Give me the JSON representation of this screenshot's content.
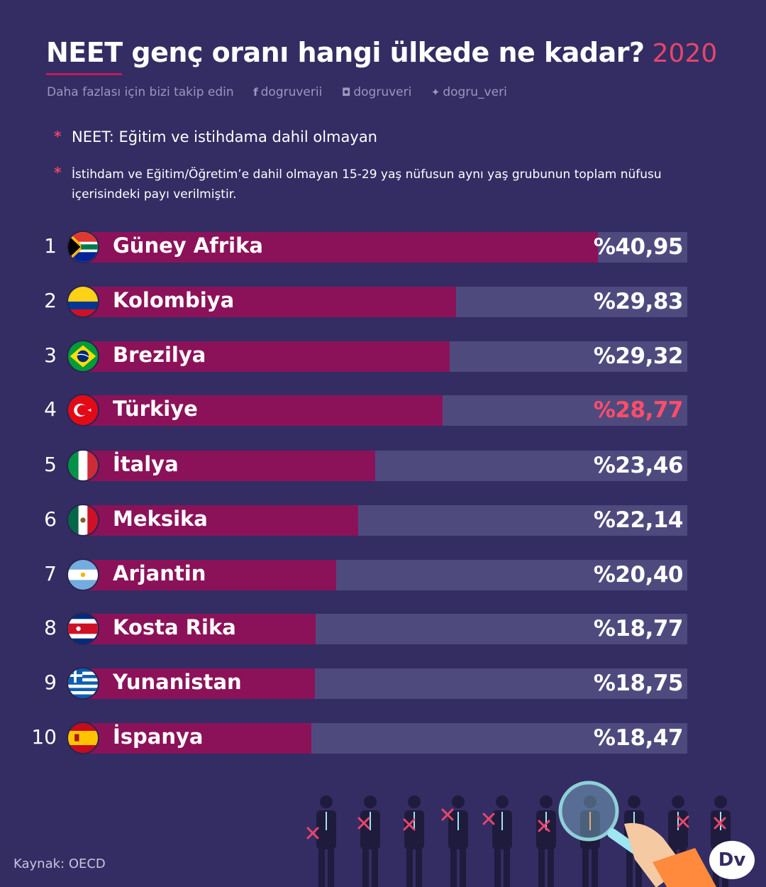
{
  "header": {
    "title": "NEET genç oranı hangi ülkede ne kadar?",
    "year": "2020",
    "follow_text": "Daha fazlası için bizi takip edin",
    "social": [
      {
        "icon": "facebook-icon",
        "glyph": "f",
        "handle": "dogruverii"
      },
      {
        "icon": "instagram-icon",
        "glyph": "◘",
        "handle": "dogruveri"
      },
      {
        "icon": "twitter-icon",
        "glyph": "✦",
        "handle": "dogru_veri"
      }
    ]
  },
  "notes": {
    "star": "*",
    "note1": "NEET: Eğitim ve istihdama dahil olmayan",
    "note2": "İstihdam ve Eğitim/Öğretim’e dahil olmayan 15-29 yaş nüfusun aynı yaş grubunun toplam nüfusu içerisindeki payı verilmiştir."
  },
  "colors": {
    "background": "#332d63",
    "bar_fill": "#8b1259",
    "bar_track": "#4f4a7e",
    "highlight": "#ff4d6a"
  },
  "chart_data": {
    "type": "bar",
    "orientation": "horizontal",
    "categories": [
      "Güney Afrika",
      "Kolombiya",
      "Brezilya",
      "Türkiye",
      "İtalya",
      "Meksika",
      "Arjantin",
      "Kosta Rika",
      "Yunanistan",
      "İspanya"
    ],
    "ranks": [
      "1",
      "2",
      "3",
      "4",
      "5",
      "6",
      "7",
      "8",
      "9",
      "10"
    ],
    "values": [
      40.95,
      29.83,
      29.32,
      28.77,
      23.46,
      22.14,
      20.4,
      18.77,
      18.75,
      18.47
    ],
    "value_labels": [
      "%40,95",
      "%29,83",
      "%29,32",
      "%28,77",
      "%23,46",
      "%22,14",
      "%20,40",
      "%18,77",
      "%18,75",
      "%18,47"
    ],
    "flags": [
      "south-africa-flag-icon",
      "colombia-flag-icon",
      "brazil-flag-icon",
      "turkey-flag-icon",
      "italy-flag-icon",
      "mexico-flag-icon",
      "argentina-flag-icon",
      "costa-rica-flag-icon",
      "greece-flag-icon",
      "spain-flag-icon"
    ],
    "highlight_index": 3,
    "xlim": [
      0,
      48
    ],
    "grid": false,
    "legend": "none"
  },
  "footer": {
    "source": "Kaynak: OECD",
    "logo": "Dv"
  }
}
